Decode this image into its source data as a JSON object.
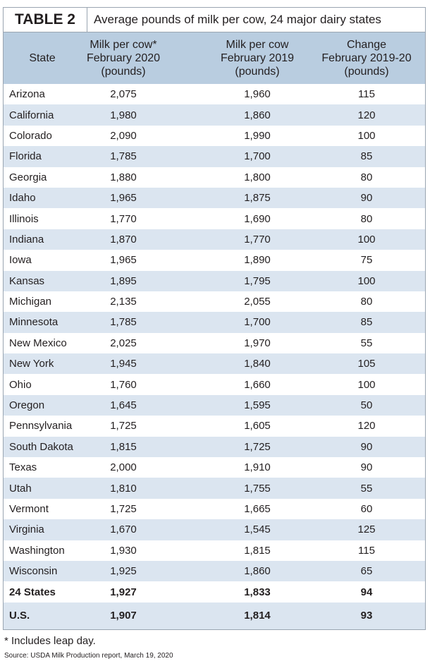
{
  "header": {
    "label": "TABLE 2",
    "title": "Average pounds of milk per cow, 24 major dairy states"
  },
  "table": {
    "columns": [
      "State",
      "Milk per cow*\nFebruary 2020\n(pounds)",
      "Milk per cow\nFebruary 2019\n(pounds)",
      "Change\nFebruary 2019-20\n(pounds)"
    ],
    "rows": [
      [
        "Arizona",
        "2,075",
        "1,960",
        "115"
      ],
      [
        "California",
        "1,980",
        "1,860",
        "120"
      ],
      [
        "Colorado",
        "2,090",
        "1,990",
        "100"
      ],
      [
        "Florida",
        "1,785",
        "1,700",
        "85"
      ],
      [
        "Georgia",
        "1,880",
        "1,800",
        "80"
      ],
      [
        "Idaho",
        "1,965",
        "1,875",
        "90"
      ],
      [
        "Illinois",
        "1,770",
        "1,690",
        "80"
      ],
      [
        "Indiana",
        "1,870",
        "1,770",
        "100"
      ],
      [
        "Iowa",
        "1,965",
        "1,890",
        "75"
      ],
      [
        "Kansas",
        "1,895",
        "1,795",
        "100"
      ],
      [
        "Michigan",
        "2,135",
        "2,055",
        "80"
      ],
      [
        "Minnesota",
        "1,785",
        "1,700",
        "85"
      ],
      [
        "New Mexico",
        "2,025",
        "1,970",
        "55"
      ],
      [
        "New York",
        "1,945",
        "1,840",
        "105"
      ],
      [
        "Ohio",
        "1,760",
        "1,660",
        "100"
      ],
      [
        "Oregon",
        "1,645",
        "1,595",
        "50"
      ],
      [
        "Pennsylvania",
        "1,725",
        "1,605",
        "120"
      ],
      [
        "South Dakota",
        "1,815",
        "1,725",
        "90"
      ],
      [
        "Texas",
        "2,000",
        "1,910",
        "90"
      ],
      [
        "Utah",
        "1,810",
        "1,755",
        "55"
      ],
      [
        "Vermont",
        "1,725",
        "1,665",
        "60"
      ],
      [
        "Virginia",
        "1,670",
        "1,545",
        "125"
      ],
      [
        "Washington",
        "1,930",
        "1,815",
        "115"
      ],
      [
        "Wisconsin",
        "1,925",
        "1,860",
        "65"
      ],
      [
        "24 States",
        "1,927",
        "1,833",
        "94"
      ],
      [
        "U.S.",
        "1,907",
        "1,814",
        "93"
      ]
    ]
  },
  "footnote": "* Includes leap day.",
  "source": "Source: USDA Milk Production report, March 19, 2020"
}
